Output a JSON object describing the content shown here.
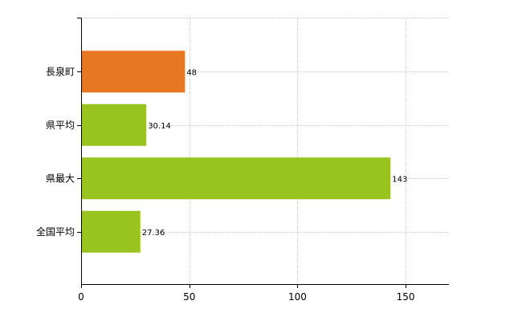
{
  "chart_data": {
    "type": "bar",
    "orientation": "horizontal",
    "categories": [
      "長泉町",
      "県平均",
      "県最大",
      "全国平均"
    ],
    "values": [
      48,
      30.14,
      143,
      27.36
    ],
    "value_labels": [
      "48",
      "30.14",
      "143",
      "27.36"
    ],
    "bar_colors": [
      "#E87722",
      "#99C31E",
      "#99C31E",
      "#99C31E"
    ],
    "xlim": [
      0,
      170
    ],
    "x_ticks": [
      0,
      50,
      100,
      150
    ],
    "title": "",
    "xlabel": "",
    "ylabel": "",
    "grid": true,
    "legend": "none"
  }
}
